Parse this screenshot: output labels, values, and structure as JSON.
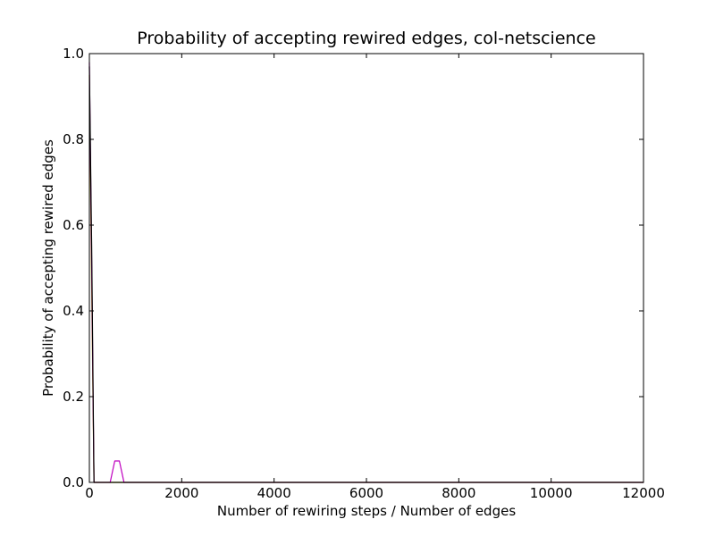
{
  "chart_data": {
    "type": "line",
    "title": "Probability of accepting rewired edges, col-netscience",
    "xlabel": "Number of rewiring steps / Number of edges",
    "ylabel": "Probability of accepting rewired edges",
    "xlim": [
      0,
      12000
    ],
    "ylim": [
      0,
      1.0
    ],
    "xticks": [
      "0",
      "2000",
      "4000",
      "6000",
      "8000",
      "10000",
      "12000"
    ],
    "yticks": [
      "0.0",
      "0.2",
      "0.4",
      "0.6",
      "0.8",
      "1.0"
    ],
    "grid": false,
    "legend": "none",
    "series": [
      {
        "color": "#bfbf00",
        "x": [
          0,
          50,
          100,
          150,
          12000
        ],
        "y": [
          0.95,
          0.45,
          0.0,
          0.0,
          0.0
        ]
      },
      {
        "color": "#bf00bf",
        "x": [
          0,
          50,
          100,
          150,
          450,
          550,
          650,
          750,
          850,
          10500,
          11000,
          11500,
          12000
        ],
        "y": [
          0.98,
          0.5,
          0.0,
          0.0,
          0.0,
          0.05,
          0.05,
          0.0,
          0.0,
          0.0,
          0.0,
          0.0,
          0.0
        ]
      },
      {
        "color": "#000000",
        "x": [
          0,
          50,
          100,
          150,
          12000
        ],
        "y": [
          0.97,
          0.55,
          0.0,
          0.0,
          0.0
        ]
      }
    ]
  }
}
